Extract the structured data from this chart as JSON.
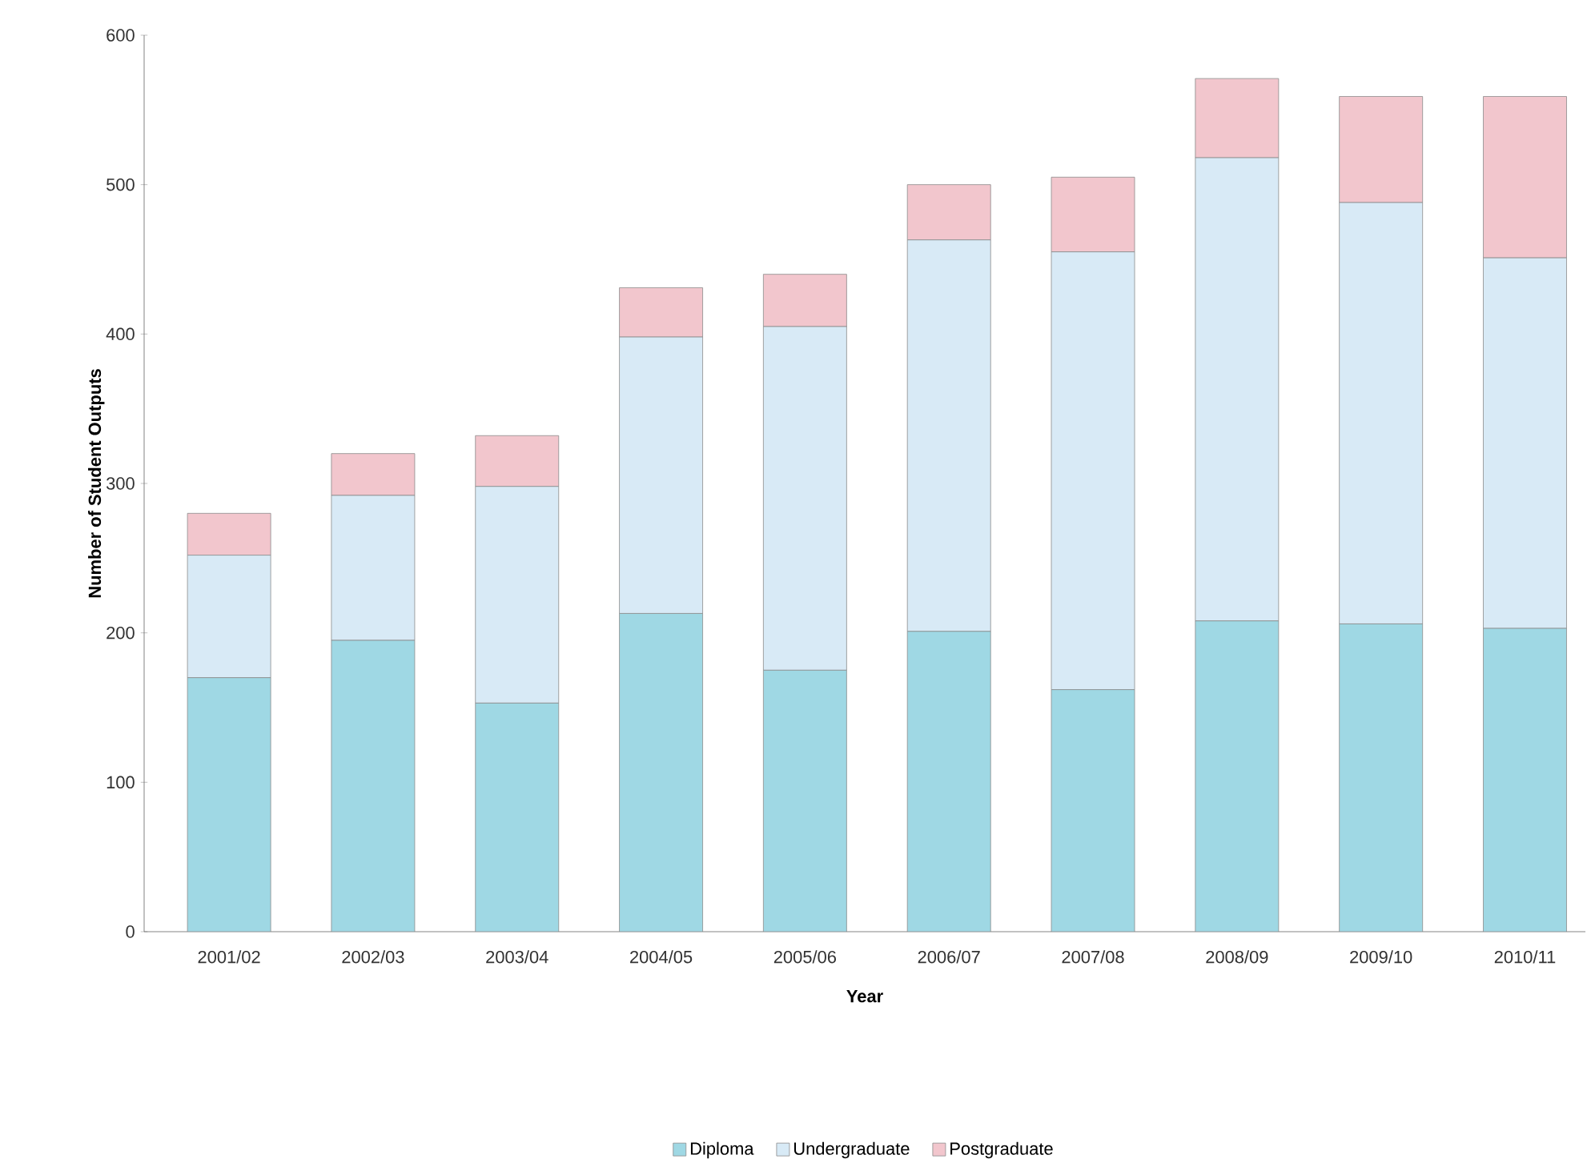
{
  "chart_data": {
    "type": "bar",
    "stacked": true,
    "xlabel": "Year",
    "ylabel": "Number of Student Outputs",
    "categories": [
      "2001/02",
      "2002/03",
      "2003/04",
      "2004/05",
      "2005/06",
      "2006/07",
      "2007/08",
      "2008/09",
      "2009/10",
      "2010/11"
    ],
    "series": [
      {
        "name": "Diploma",
        "color": "#9fd8e4",
        "values": [
          170,
          195,
          153,
          213,
          175,
          201,
          162,
          208,
          206,
          203
        ]
      },
      {
        "name": "Undergraduate",
        "color": "#d8eaf6",
        "values": [
          82,
          97,
          145,
          185,
          230,
          262,
          293,
          310,
          282,
          248
        ]
      },
      {
        "name": "Postgraduate",
        "color": "#f2c6cd",
        "values": [
          28,
          28,
          34,
          33,
          35,
          37,
          50,
          53,
          71,
          108
        ]
      }
    ],
    "ylim": [
      0,
      600
    ],
    "yticks": [
      0,
      100,
      200,
      300,
      400,
      500,
      600
    ],
    "legend": "bottom"
  }
}
